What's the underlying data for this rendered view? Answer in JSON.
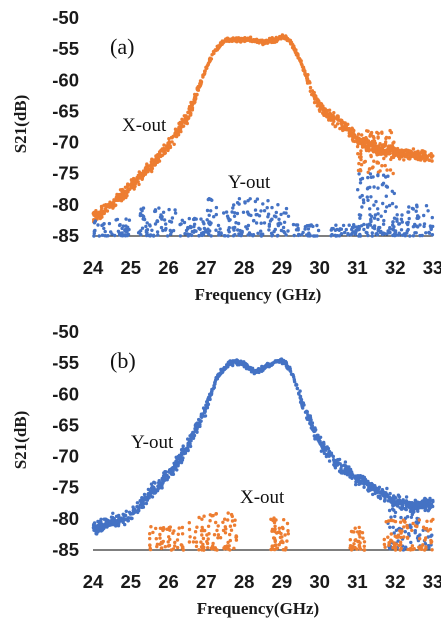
{
  "chart_data": [
    {
      "type": "scatter",
      "panel_label": "(a)",
      "xlabel": "Frequency (GHz)",
      "ylabel": "S21(dB)",
      "xlim": [
        24,
        33
      ],
      "ylim": [
        -85,
        -50
      ],
      "xticks": [
        "24",
        "25",
        "26",
        "27",
        "28",
        "29",
        "30",
        "31",
        "32",
        "33"
      ],
      "yticks": [
        "-50",
        "-55",
        "-60",
        "-65",
        "-70",
        "-75",
        "-80",
        "-85"
      ],
      "series": [
        {
          "name": "X-out",
          "color": "#ED7D31",
          "x": [
            24.0,
            24.5,
            25.0,
            25.5,
            26.0,
            26.5,
            27.0,
            27.2,
            27.5,
            27.8,
            28.0,
            28.3,
            28.5,
            28.8,
            29.0,
            29.2,
            29.5,
            29.8,
            30.0,
            30.3,
            30.6,
            31.0,
            31.5,
            32.0,
            32.5,
            33.0
          ],
          "y": [
            -82,
            -80,
            -77,
            -74,
            -70.5,
            -66,
            -58,
            -55.5,
            -53.5,
            -53.5,
            -53.5,
            -53.5,
            -54,
            -53.5,
            -53,
            -53.5,
            -57,
            -62,
            -64,
            -66,
            -67,
            -69.5,
            -71,
            -71.5,
            -72,
            -72.5
          ],
          "scatter_spread_db": 1.4,
          "extra_cluster": {
            "x_range": [
              31.0,
              32.0
            ],
            "y_range": [
              -75,
              -68
            ]
          }
        },
        {
          "name": "Y-out",
          "color": "#4472C4",
          "clusters": [
            {
              "x_range": [
                24.0,
                25.0
              ],
              "y_range": [
                -85,
                -82
              ]
            },
            {
              "x_range": [
                25.2,
                26.2
              ],
              "y_range": [
                -85,
                -80.5
              ]
            },
            {
              "x_range": [
                26.3,
                27.0
              ],
              "y_range": [
                -85,
                -82
              ]
            },
            {
              "x_range": [
                27.0,
                29.2
              ],
              "y_range": [
                -85,
                -79
              ]
            },
            {
              "x_range": [
                29.3,
                30.0
              ],
              "y_range": [
                -85,
                -83
              ]
            },
            {
              "x_range": [
                30.3,
                31.0
              ],
              "y_range": [
                -85,
                -83
              ]
            },
            {
              "x_range": [
                31.0,
                32.0
              ],
              "y_range": [
                -85,
                -75
              ]
            },
            {
              "x_range": [
                32.0,
                33.0
              ],
              "y_range": [
                -85,
                -80
              ]
            }
          ]
        }
      ]
    },
    {
      "type": "scatter",
      "panel_label": "(b)",
      "xlabel": "Frequency(GHz)",
      "ylabel": "S21(dB)",
      "xlim": [
        24,
        33
      ],
      "ylim": [
        -85,
        -50
      ],
      "xticks": [
        "24",
        "25",
        "26",
        "27",
        "28",
        "29",
        "30",
        "31",
        "32",
        "33"
      ],
      "yticks": [
        "-50",
        "-55",
        "-60",
        "-65",
        "-70",
        "-75",
        "-80",
        "-85"
      ],
      "series": [
        {
          "name": "Y-out",
          "color": "#4472C4",
          "x": [
            24.0,
            24.5,
            25.0,
            25.5,
            26.0,
            26.5,
            27.0,
            27.3,
            27.6,
            27.8,
            28.0,
            28.3,
            28.6,
            28.9,
            29.1,
            29.3,
            29.6,
            29.9,
            30.2,
            30.5,
            31.0,
            31.5,
            32.0,
            32.5,
            33.0
          ],
          "y": [
            -81.5,
            -80.5,
            -79.5,
            -76,
            -73,
            -68.5,
            -62,
            -57,
            -55,
            -54.8,
            -55.2,
            -56.5,
            -55.5,
            -54.5,
            -55,
            -57,
            -62.5,
            -66.5,
            -69.5,
            -71.5,
            -73.5,
            -75.5,
            -77,
            -78,
            -77.5
          ],
          "scatter_spread_db": 1.5,
          "extra_cluster": {
            "x_range": [
              31.8,
              33.0
            ],
            "y_range": [
              -85,
              -77
            ]
          }
        },
        {
          "name": "X-out",
          "color": "#ED7D31",
          "clusters": [
            {
              "x_range": [
                25.5,
                26.4
              ],
              "y_range": [
                -85,
                -81
              ]
            },
            {
              "x_range": [
                26.5,
                27.8
              ],
              "y_range": [
                -85,
                -79
              ]
            },
            {
              "x_range": [
                28.7,
                29.2
              ],
              "y_range": [
                -85,
                -79.5
              ]
            },
            {
              "x_range": [
                30.8,
                31.2
              ],
              "y_range": [
                -85,
                -81
              ]
            },
            {
              "x_range": [
                31.7,
                33.0
              ],
              "y_range": [
                -85,
                -80
              ]
            }
          ]
        }
      ]
    }
  ],
  "annotations": {
    "a_xout": "X-out",
    "a_yout": "Y-out",
    "b_yout": "Y-out",
    "b_xout": "X-out"
  }
}
